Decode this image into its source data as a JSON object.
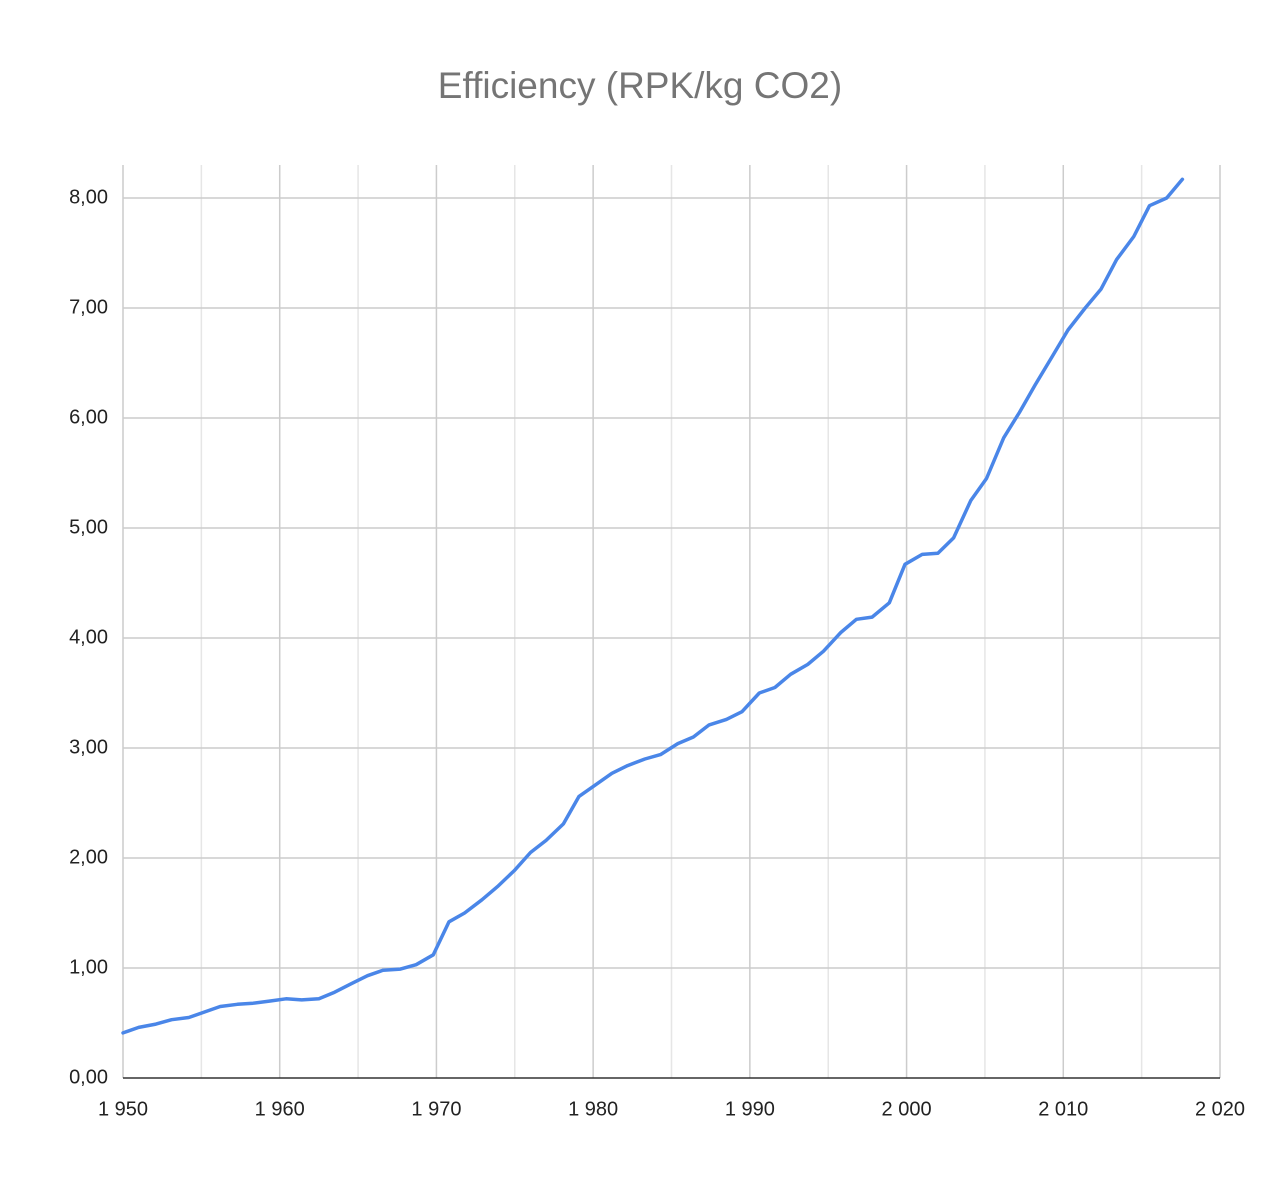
{
  "chart_data": {
    "type": "line",
    "title": "Efficiency (RPK/kg CO2)",
    "x": [
      1950.0,
      1951.0,
      1952.1,
      1953.1,
      1954.2,
      1955.2,
      1956.2,
      1957.3,
      1958.3,
      1959.4,
      1960.4,
      1961.4,
      1962.5,
      1963.5,
      1964.6,
      1965.6,
      1966.6,
      1967.7,
      1968.7,
      1969.8,
      1970.8,
      1971.8,
      1972.9,
      1973.9,
      1975.0,
      1976.0,
      1977.0,
      1978.1,
      1979.1,
      1980.2,
      1981.2,
      1982.2,
      1983.3,
      1984.3,
      1985.4,
      1986.4,
      1987.4,
      1988.5,
      1989.5,
      1990.6,
      1991.6,
      1992.6,
      1993.7,
      1994.7,
      1995.8,
      1996.8,
      1997.8,
      1998.9,
      1999.9,
      2001.0,
      2002.0,
      2003.0,
      2004.1,
      2005.1,
      2006.2,
      2007.2,
      2008.2,
      2009.3,
      2010.3,
      2011.4,
      2012.4,
      2013.4,
      2014.5,
      2015.5,
      2016.6,
      2017.6
    ],
    "series": [
      {
        "name": "Efficiency (RPK/kg CO2)",
        "color": "#4a86e8",
        "values": [
          0.41,
          0.46,
          0.49,
          0.53,
          0.55,
          0.6,
          0.65,
          0.67,
          0.68,
          0.7,
          0.72,
          0.71,
          0.72,
          0.78,
          0.86,
          0.93,
          0.98,
          0.99,
          1.03,
          1.12,
          1.42,
          1.5,
          1.62,
          1.74,
          1.89,
          2.05,
          2.16,
          2.31,
          2.56,
          2.67,
          2.77,
          2.84,
          2.9,
          2.94,
          3.04,
          3.1,
          3.21,
          3.26,
          3.33,
          3.5,
          3.55,
          3.67,
          3.76,
          3.88,
          4.05,
          4.17,
          4.19,
          4.32,
          4.67,
          4.76,
          4.77,
          4.91,
          5.25,
          5.45,
          5.82,
          6.05,
          6.3,
          6.56,
          6.8,
          7.0,
          7.17,
          7.44,
          7.65,
          7.93,
          8.0,
          8.17
        ]
      }
    ],
    "xlim": [
      1950,
      2020
    ],
    "xticks": [
      {
        "value": 1950,
        "label": "1 950"
      },
      {
        "value": 1960,
        "label": "1 960"
      },
      {
        "value": 1970,
        "label": "1 970"
      },
      {
        "value": 1980,
        "label": "1 980"
      },
      {
        "value": 1990,
        "label": "1 990"
      },
      {
        "value": 2000,
        "label": "2 000"
      },
      {
        "value": 2010,
        "label": "2 010"
      },
      {
        "value": 2020,
        "label": "2 020"
      }
    ],
    "xminorticks": [
      1955,
      1965,
      1975,
      1985,
      1995,
      2005,
      2015
    ],
    "ylim": [
      0,
      8.3
    ],
    "yticks": [
      {
        "value": 0,
        "label": "0,00"
      },
      {
        "value": 1,
        "label": "1,00"
      },
      {
        "value": 2,
        "label": "2,00"
      },
      {
        "value": 3,
        "label": "3,00"
      },
      {
        "value": 4,
        "label": "4,00"
      },
      {
        "value": 5,
        "label": "5,00"
      },
      {
        "value": 6,
        "label": "6,00"
      },
      {
        "value": 7,
        "label": "7,00"
      },
      {
        "value": 8,
        "label": "8,00"
      }
    ],
    "grid": true
  }
}
